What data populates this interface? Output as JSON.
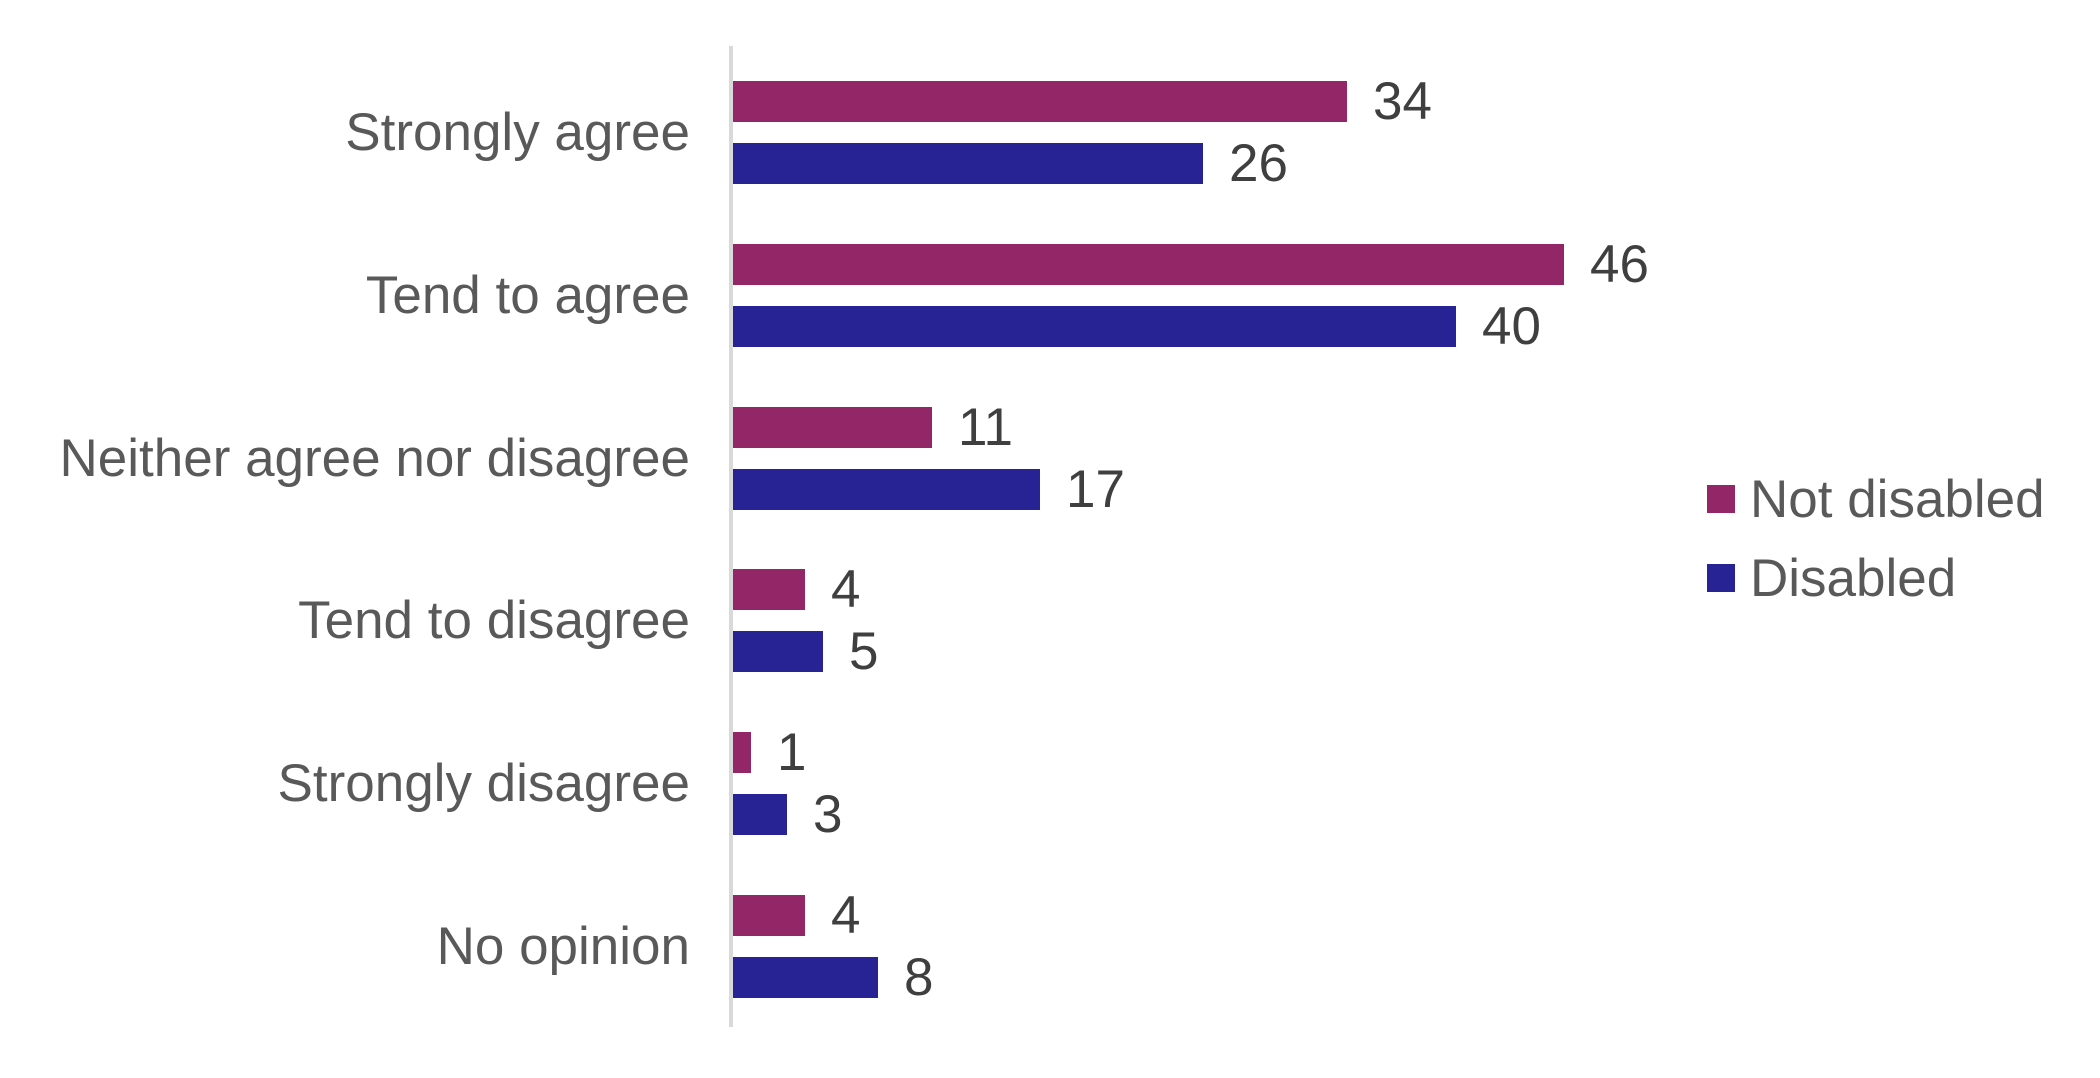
{
  "chart_data": {
    "type": "bar",
    "orientation": "horizontal",
    "categories": [
      "Strongly agree",
      "Tend to agree",
      "Neither agree nor disagree",
      "Tend to disagree",
      "Strongly disagree",
      "No opinion"
    ],
    "series": [
      {
        "name": "Not disabled",
        "color": "#932667",
        "values": [
          34,
          46,
          11,
          4,
          1,
          4
        ]
      },
      {
        "name": "Disabled",
        "color": "#272394",
        "values": [
          26,
          40,
          17,
          5,
          3,
          8
        ]
      }
    ],
    "value_range": [
      0,
      46
    ],
    "data_labels": true,
    "gridlines": false,
    "legend_position": "right"
  },
  "legend": {
    "items": [
      {
        "label": "Not disabled",
        "color": "#932667"
      },
      {
        "label": "Disabled",
        "color": "#272394"
      }
    ]
  },
  "styles": {
    "background": "#FFFFFF",
    "category_text_color": "#595959",
    "value_text_color": "#3F3F3F",
    "legend_text_color": "#595959",
    "axis_line_color": "#D9D9D9"
  }
}
